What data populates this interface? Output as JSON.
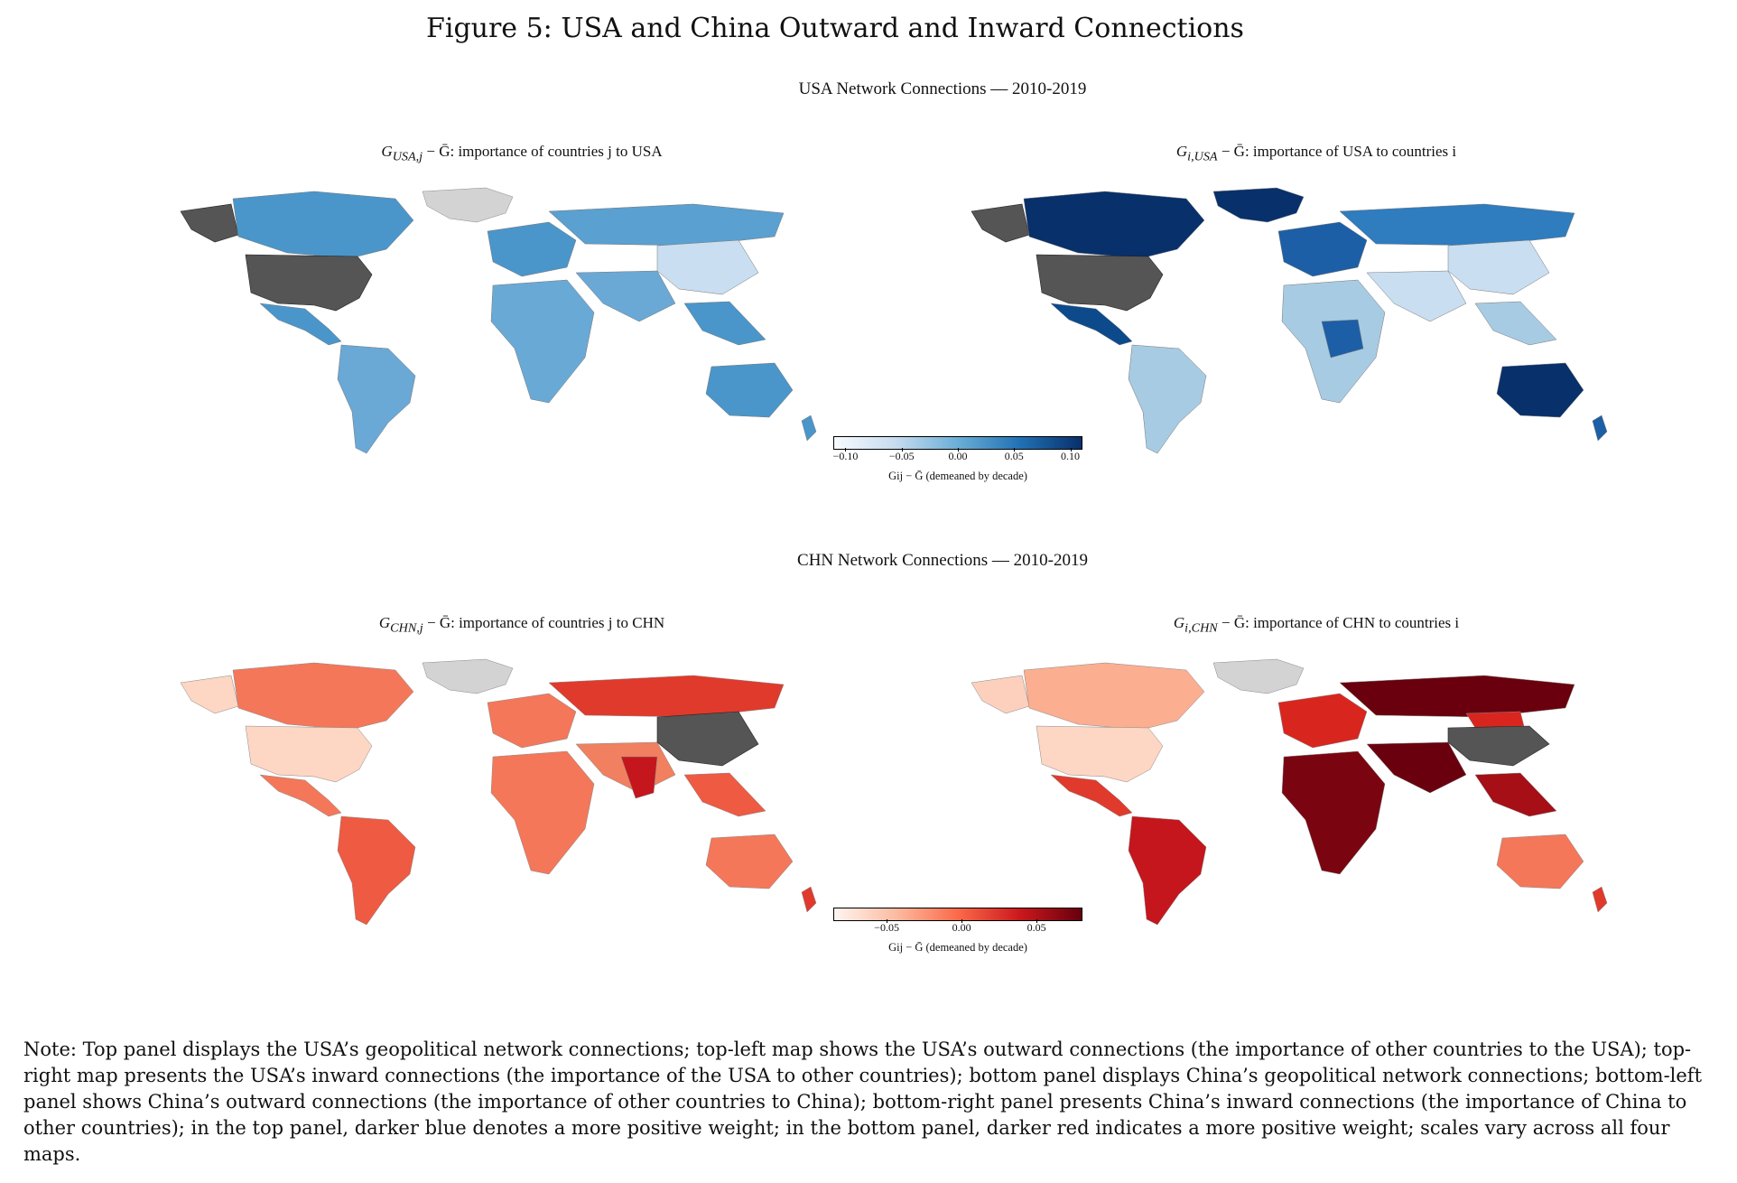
{
  "figure_title": "Figure 5: USA and China Outward and Inward Connections",
  "top_panel": {
    "title": "USA Network Connections — 2010-2019",
    "left_map_title_math": "G",
    "left_map_title_sub": "USA,j",
    "left_map_title_text": " − Ḡ: importance of countries j to USA",
    "right_map_title_math": "G",
    "right_map_title_sub": "i,USA",
    "right_map_title_text": " − Ḡ: importance of USA to countries i",
    "colorbar": {
      "ticks": [
        "−0.10",
        "−0.05",
        "0.00",
        "0.05",
        "0.10"
      ],
      "tick_values": [
        -0.1,
        -0.05,
        0.0,
        0.05,
        0.1
      ],
      "range": [
        -0.11,
        0.11
      ],
      "label": "Gij − Ḡ (demeaned by decade)",
      "gradient": [
        "#f7fbff",
        "#c6dbef",
        "#6baed6",
        "#2171b5",
        "#08306b"
      ]
    }
  },
  "bottom_panel": {
    "title": "CHN Network Connections — 2010-2019",
    "left_map_title_math": "G",
    "left_map_title_sub": "CHN,j",
    "left_map_title_text": " − Ḡ: importance of countries j to CHN",
    "right_map_title_math": "G",
    "right_map_title_sub": "i,CHN",
    "right_map_title_text": " − Ḡ: importance of CHN to countries i",
    "colorbar": {
      "ticks": [
        "−0.05",
        "0.00",
        "0.05"
      ],
      "tick_values": [
        -0.05,
        0.0,
        0.05
      ],
      "range": [
        -0.085,
        0.08
      ],
      "label": "Gij − Ḡ (demeaned by decade)",
      "gradient": [
        "#fff5f0",
        "#fcbba1",
        "#fb6a4a",
        "#cb181d",
        "#67000d"
      ]
    }
  },
  "colors": {
    "focal_country": "#555555",
    "no_data": "#d3d3d3",
    "usa_out_main": "#4a96ca",
    "usa_out_light": "#c9def0",
    "usa_in_dark": "#08306b",
    "usa_in_mid": "#2f7cbf",
    "usa_in_light": "#a7cbe3",
    "chn_out_light": "#fdd6c4",
    "chn_out_mid": "#f4775a",
    "chn_out_dark": "#d52221",
    "chn_in_light": "#fdd0bd",
    "chn_in_mid": "#d8261f",
    "chn_in_dark": "#6a000d"
  },
  "note": "Note: Top panel displays the USA’s geopolitical network connections; top-left map shows the USA’s outward connections (the importance of other countries to the USA); top-right map presents the USA’s inward connections (the importance of the USA to other countries); bottom panel displays China’s geopolitical network connections; bottom-left panel shows China’s outward connections (the importance of other countries to China); bottom-right panel presents China’s inward connections (the importance of China to other countries); in the top panel, darker blue denotes a more positive weight; in the bottom panel, darker red indicates a more positive weight; scales vary across all four maps."
}
